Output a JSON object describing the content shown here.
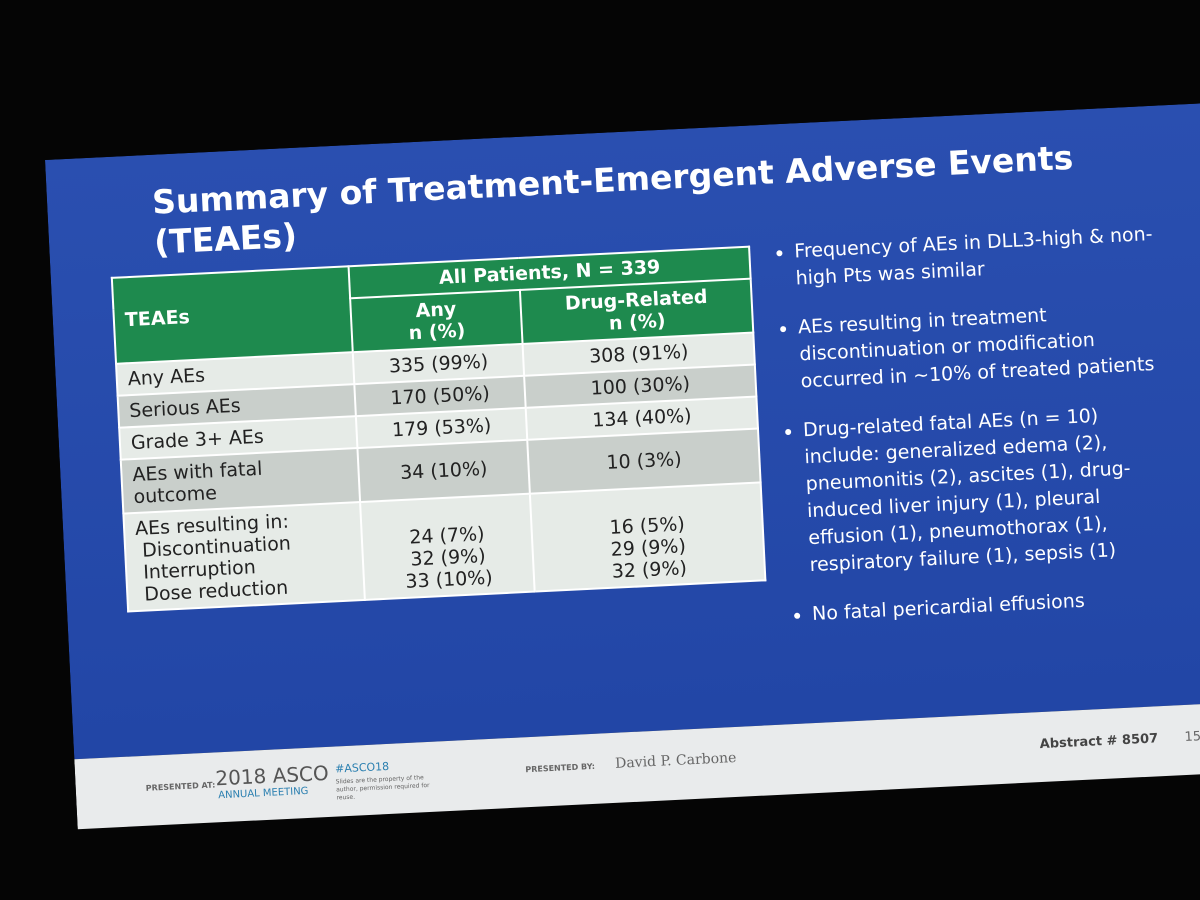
{
  "slide": {
    "title": [
      "Summary of Treatment-Emergent Adverse Events",
      "(TEAEs)"
    ],
    "table": {
      "row_header": "TEAEs",
      "group_header": "All Patients, N = 339",
      "columns": [
        {
          "name": "Any",
          "unit": "n (%)"
        },
        {
          "name": "Drug-Related",
          "unit": "n (%)"
        }
      ],
      "rows": [
        [
          "Any AEs",
          "335 (99%)",
          "308 (91%)"
        ],
        [
          "Serious AEs",
          "170 (50%)",
          "100 (30%)"
        ],
        [
          "Grade 3+ AEs",
          "179 (53%)",
          "134 (40%)"
        ],
        [
          "AEs with fatal outcome",
          "34 (10%)",
          "10 (3%)"
        ]
      ],
      "group": {
        "label": "AEs resulting in:",
        "rows": [
          [
            "Discontinuation",
            "24 (7%)",
            "16 (5%)"
          ],
          [
            "Interruption",
            "32 (9%)",
            "29 (9%)"
          ],
          [
            "Dose reduction",
            "33 (10%)",
            "32 (9%)"
          ]
        ]
      }
    },
    "bullets": [
      "Frequency of AEs in DLL3-high & non-high Pts was similar",
      "AEs resulting in treatment discontinuation or modification occurred in ~10% of treated patients",
      "Drug-related fatal AEs (n = 10) include: generalized edema (2), pneumonitis (2), ascites (1), drug-induced liver injury (1), pleural effusion (1), pneumothorax (1), respiratory failure (1), sepsis (1)",
      "No fatal pericardial effusions"
    ],
    "footer": {
      "presented_at": "PRESENTED AT:",
      "meeting_year": "2018 ASCO",
      "meeting_name": "ANNUAL MEETING",
      "hashtag": "#ASCO18",
      "notice": "Slides are the property of the author, permission required for reuse.",
      "presented_by": "PRESENTED BY:",
      "presenter": "David P. Carbone",
      "abstract": "Abstract # 8507",
      "page": "15"
    }
  }
}
